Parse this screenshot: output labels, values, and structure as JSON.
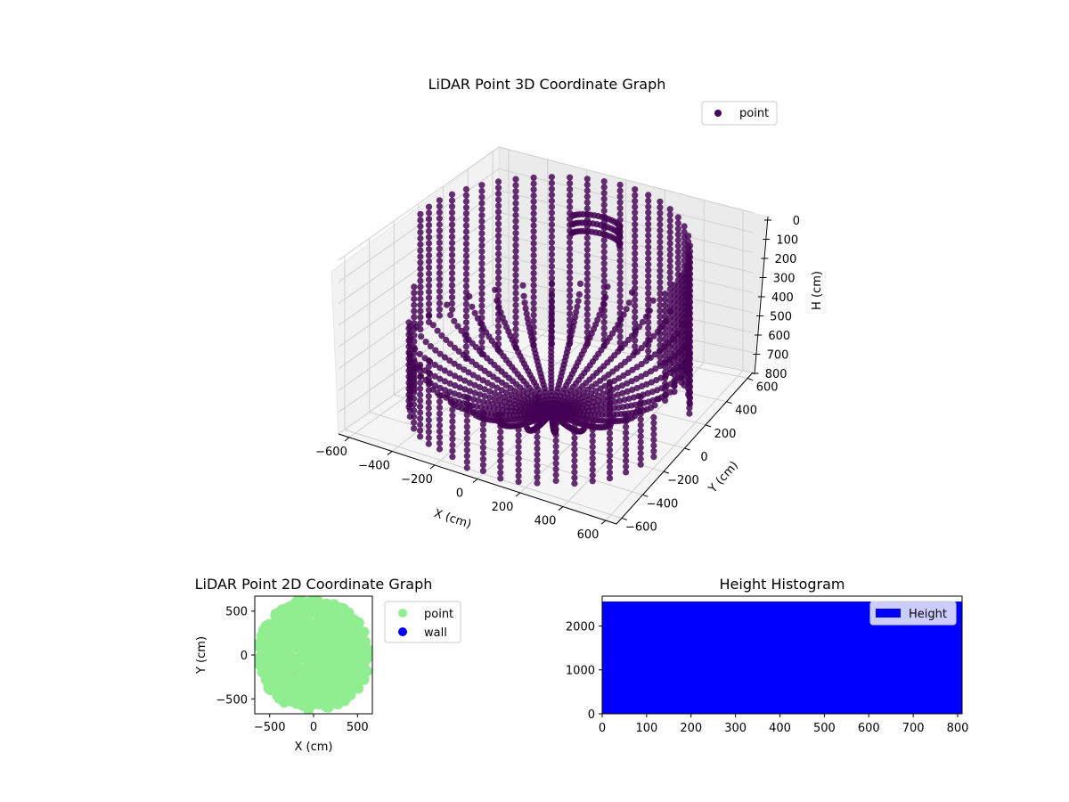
{
  "chart_data": [
    {
      "type": "scatter3d",
      "title": "LiDAR Point 3D Coordinate Graph",
      "xlabel": "X (cm)",
      "ylabel": "Y (cm)",
      "zlabel": "H (cm)",
      "x_ticks": [
        "−600",
        "−400",
        "−200",
        "0",
        "200",
        "400",
        "600"
      ],
      "y_ticks": [
        "−600",
        "−400",
        "−200",
        "0",
        "200",
        "400",
        "600"
      ],
      "z_ticks": [
        "0",
        "100",
        "200",
        "300",
        "400",
        "500",
        "600",
        "700",
        "800"
      ],
      "xlim": [
        -650,
        650
      ],
      "ylim": [
        -650,
        650
      ],
      "zlim": [
        800,
        0
      ],
      "z_inverted": true,
      "grid": true,
      "legend": {
        "position": "upper right",
        "entries": [
          {
            "label": "point",
            "color": "#440154",
            "marker": "circle"
          }
        ]
      },
      "series": [
        {
          "name": "point",
          "color": "#440154",
          "description": "Radial LiDAR scan lines: vertical columns of points around a ring of radius ~600 cm at heights 0-800 cm, plus arcs converging toward the sensor at the center bottom",
          "ring_radius_cm": 600,
          "height_range_cm": [
            0,
            800
          ]
        }
      ]
    },
    {
      "type": "scatter",
      "title": "LiDAR Point 2D Coordinate Graph",
      "xlabel": "X (cm)",
      "ylabel": "Y (cm)",
      "x_ticks": [
        "−500",
        "0",
        "500"
      ],
      "y_ticks": [
        "−500",
        "0",
        "500"
      ],
      "xlim": [
        -670,
        670
      ],
      "ylim": [
        -670,
        670
      ],
      "legend": {
        "position": "outside upper right",
        "entries": [
          {
            "label": "point",
            "color": "#90ee90"
          },
          {
            "label": "wall",
            "color": "#0000ff"
          }
        ]
      },
      "series": [
        {
          "name": "point",
          "color": "#90ee90",
          "description": "Dense disc of points filling radius ~650 cm"
        },
        {
          "name": "wall",
          "color": "#0000ff",
          "values": []
        }
      ]
    },
    {
      "type": "bar",
      "title": "Height Histogram",
      "xlabel": "",
      "ylabel": "",
      "x_ticks": [
        "0",
        "100",
        "200",
        "300",
        "400",
        "500",
        "600",
        "700",
        "800"
      ],
      "y_ticks": [
        "0",
        "1000",
        "2000"
      ],
      "xlim": [
        0,
        810
      ],
      "ylim": [
        0,
        2680
      ],
      "legend": {
        "position": "upper right",
        "entries": [
          {
            "label": "Height",
            "color": "#0000ff"
          }
        ]
      },
      "series": [
        {
          "name": "Height",
          "color": "#0000ff",
          "bin_range": [
            0,
            810
          ],
          "count_per_bin": 2550
        }
      ]
    }
  ],
  "labels": {
    "title3d": "LiDAR Point 3D Coordinate Graph",
    "title2d": "LiDAR Point 2D Coordinate Graph",
    "titleHist": "Height Histogram",
    "legend3d": "point",
    "legend2d_point": "point",
    "legend2d_wall": "wall",
    "legendHist": "Height",
    "x3d": "X (cm)",
    "y3d": "Y (cm)",
    "z3d": "H (cm)",
    "x2d": "X (cm)",
    "y2d": "Y (cm)"
  },
  "colors": {
    "point3d": "#440154",
    "point2d": "#90ee90",
    "wall": "#0000ff",
    "hist": "#0000ff"
  }
}
